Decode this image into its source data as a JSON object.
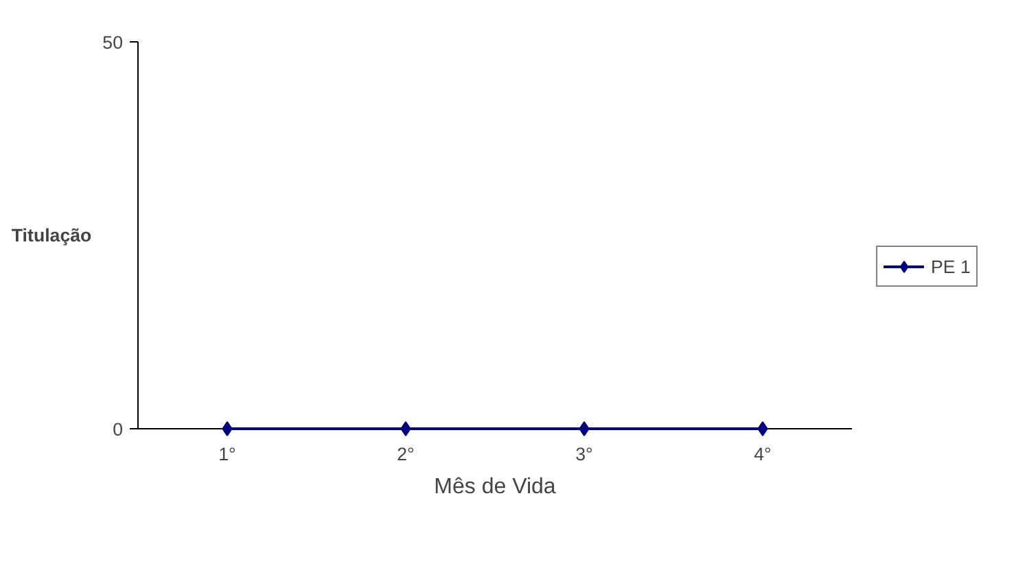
{
  "chart_data": {
    "type": "line",
    "xlabel": "Mês de Vida",
    "ylabel": "Titulação",
    "categories": [
      "1°",
      "2°",
      "3°",
      "4°"
    ],
    "series": [
      {
        "name": "PE 1",
        "color": "#000080",
        "values": [
          0,
          0,
          0,
          0
        ]
      }
    ],
    "ylim": [
      0,
      50
    ],
    "yticks": [
      0,
      50
    ],
    "grid": false,
    "legend": "right",
    "marker": "diamond",
    "line_style": "solid"
  }
}
